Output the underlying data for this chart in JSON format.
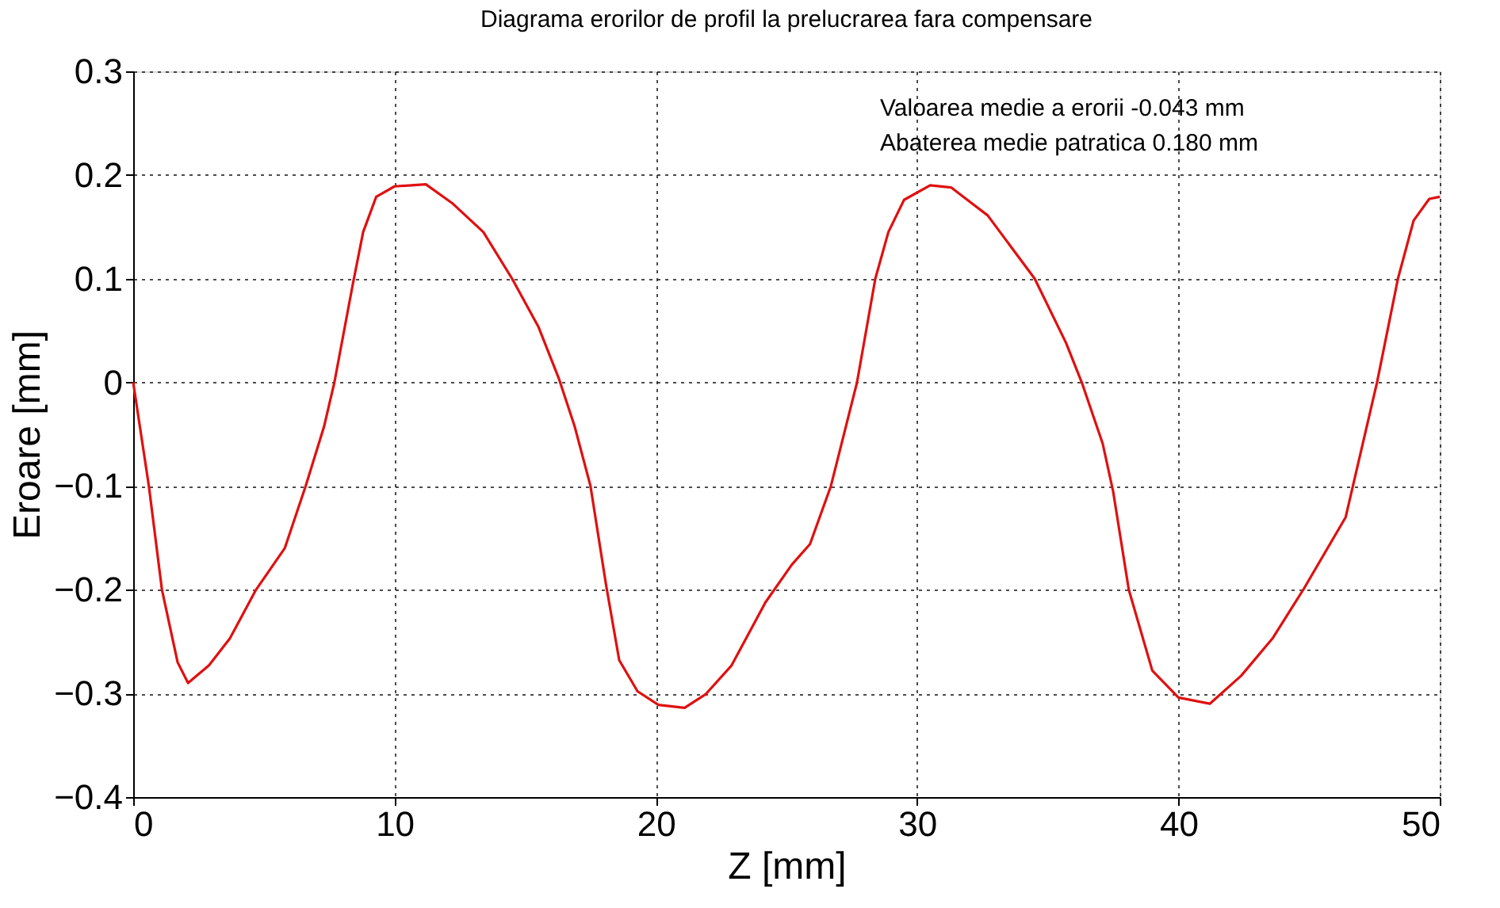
{
  "chart_data": {
    "type": "line",
    "title": "Diagrama erorilor de profil la prelucrarea fara compensare",
    "xlabel": "Z [mm]",
    "ylabel": "Eroare [mm]",
    "xlim": [
      0,
      50
    ],
    "xticks": [
      0,
      10,
      20,
      30,
      40,
      50
    ],
    "ylim": [
      -0.4,
      0.3
    ],
    "yticks": [
      -0.4,
      -0.3,
      -0.2,
      -0.1,
      0,
      0.1,
      0.2,
      0.3
    ],
    "grid": true,
    "marker": "none",
    "line_style": "solid",
    "annotations": [
      "Valoarea medie a erorii -0.043 mm",
      "Abaterea medie patratica 0.180 mm"
    ],
    "series": [
      {
        "color": "#e01010",
        "x": [
          0,
          0.6,
          1.1,
          1.7,
          2.1,
          2.9,
          3.7,
          4.7,
          5.8,
          6.6,
          7.3,
          7.7,
          8.4,
          8.8,
          9.3,
          10.0,
          11.2,
          12.2,
          13.4,
          14.5,
          15.5,
          16.3,
          16.9,
          17.5,
          18.1,
          18.6,
          19.3,
          20.1,
          21.1,
          21.9,
          22.9,
          24.2,
          25.2,
          25.9,
          26.7,
          27.7,
          28.4,
          28.9,
          29.5,
          30.5,
          31.3,
          32.7,
          34.5,
          35.7,
          36.3,
          37.1,
          37.5,
          38.1,
          39.0,
          40.0,
          41.2,
          42.4,
          43.6,
          44.8,
          46.4,
          47.6,
          48.4,
          49.0,
          49.6,
          50
        ],
        "values": [
          0.0,
          -0.1,
          -0.2,
          -0.27,
          -0.29,
          -0.273,
          -0.247,
          -0.2,
          -0.16,
          -0.1,
          -0.043,
          0,
          0.094,
          0.145,
          0.179,
          0.189,
          0.191,
          0.173,
          0.145,
          0.1,
          0.054,
          0.003,
          -0.043,
          -0.1,
          -0.196,
          -0.268,
          -0.298,
          -0.311,
          -0.314,
          -0.301,
          -0.273,
          -0.212,
          -0.176,
          -0.156,
          -0.1,
          0,
          0.1,
          0.145,
          0.176,
          0.19,
          0.188,
          0.161,
          0.1,
          0.038,
          0,
          -0.059,
          -0.105,
          -0.2,
          -0.278,
          -0.304,
          -0.31,
          -0.283,
          -0.247,
          -0.199,
          -0.13,
          0,
          0.1,
          0.156,
          0.177,
          0.179
        ]
      }
    ]
  }
}
